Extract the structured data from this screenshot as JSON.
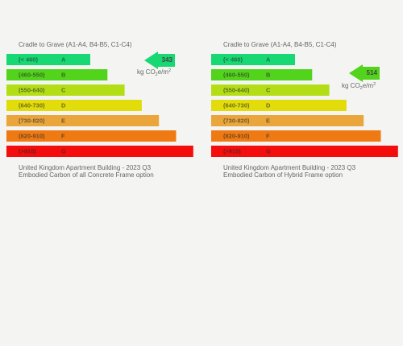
{
  "panels": [
    {
      "header": "Cradle to Grave (A1-A4, B4-B5, C1-C4)",
      "value": "343",
      "unit": [
        "kg CO",
        "2",
        "e/m",
        "2"
      ],
      "caption": [
        "United Kingdom Apartment Building - 2023 Q3",
        "Embodied Carbon of all Concrete Frame option"
      ]
    },
    {
      "header": "Cradle to Grave (A1-A4, B4-B5, C1-C4)",
      "value": "514",
      "unit": [
        "kg CO",
        "2",
        "e/m",
        "2"
      ],
      "caption": [
        "United Kingdom Apartment Building - 2023 Q3",
        "Embodied Carbon of Hybrid Frame option"
      ]
    }
  ],
  "bands": [
    {
      "range": "(< 460)",
      "letter": "A",
      "color": "#17d873"
    },
    {
      "range": "(460-550)",
      "letter": "B",
      "color": "#52d31c"
    },
    {
      "range": "(550-640)",
      "letter": "C",
      "color": "#b3de16"
    },
    {
      "range": "(640-730)",
      "letter": "D",
      "color": "#e2dc0b"
    },
    {
      "range": "(730-820)",
      "letter": "E",
      "color": "#eba63b"
    },
    {
      "range": "(820-910)",
      "letter": "F",
      "color": "#ef7a13"
    },
    {
      "range": "(>910)",
      "letter": "G",
      "color": "#f40d0d"
    }
  ]
}
